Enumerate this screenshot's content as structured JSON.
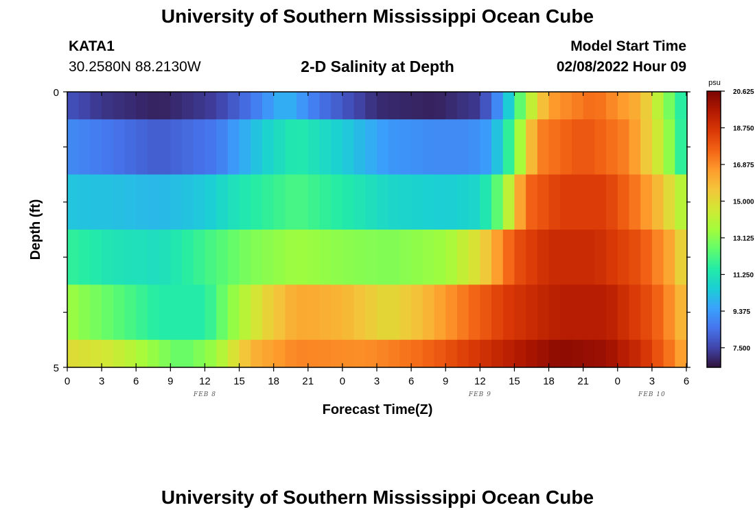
{
  "page": {
    "title_top": "University of Southern Mississippi Ocean Cube",
    "title_bottom": "University of Southern Mississippi Ocean Cube",
    "station_name": "KATA1",
    "station_coords": "30.2580N  88.2130W",
    "model_start_label": "Model Start Time",
    "model_start_value": "02/08/2022 Hour 09"
  },
  "colors": {
    "scale": [
      "#30123b",
      "#4145ab",
      "#4675ed",
      "#39a2fc",
      "#1bcfd4",
      "#24eca6",
      "#61fc6c",
      "#a4fc3b",
      "#d1e834",
      "#f3c63a",
      "#fe9b2d",
      "#f36315",
      "#d93806",
      "#b11901",
      "#7a0403"
    ]
  },
  "chart_data": {
    "type": "heatmap",
    "title": "2-D Salinity at Depth",
    "xlabel": "Forecast Time(Z)",
    "ylabel": "Depth (ft)",
    "x_tick_labels": [
      "0",
      "3",
      "6",
      "9",
      "12",
      "15",
      "18",
      "21",
      "0",
      "3",
      "6",
      "9",
      "12",
      "15",
      "18",
      "21",
      "0",
      "3",
      "6"
    ],
    "x_hours": [
      0,
      3,
      6,
      9,
      12,
      15,
      18,
      21,
      24,
      27,
      30,
      33,
      36,
      39,
      42,
      45,
      48,
      51,
      54
    ],
    "date_labels": [
      {
        "text": "FEB 8",
        "hour": 12
      },
      {
        "text": "FEB 9",
        "hour": 36
      },
      {
        "text": "FEB 10",
        "hour": 51
      }
    ],
    "y_tick_labels": [
      "0",
      "5"
    ],
    "ylim": [
      0,
      5
    ],
    "xlim": [
      0,
      54
    ],
    "colorbar": {
      "unit": "psu",
      "min": 6.5,
      "max": 20.625,
      "tick_labels": [
        "20.625",
        "18.750",
        "16.875",
        "15.000",
        "13.125",
        "11.250",
        "9.375",
        "7.500"
      ],
      "tick_values": [
        20.625,
        18.75,
        16.875,
        15.0,
        13.125,
        11.25,
        9.375,
        7.5
      ]
    },
    "layers": [
      {
        "depth_range": "0-0.5 ft",
        "keyframes": [
          [
            0,
            7.8
          ],
          [
            3,
            7.2
          ],
          [
            8,
            6.8
          ],
          [
            13,
            7.4
          ],
          [
            16,
            8.5
          ],
          [
            19,
            10.0
          ],
          [
            22,
            8.5
          ],
          [
            27,
            7.0
          ],
          [
            32,
            6.8
          ],
          [
            36,
            7.3
          ],
          [
            38,
            9.5
          ],
          [
            40,
            13.5
          ],
          [
            42,
            16.5
          ],
          [
            46,
            17.5
          ],
          [
            50,
            16.0
          ],
          [
            52,
            13.5
          ],
          [
            54,
            11.0
          ]
        ]
      },
      {
        "depth_range": "0.5-1.5 ft",
        "keyframes": [
          [
            0,
            9.0
          ],
          [
            4,
            8.5
          ],
          [
            8,
            8.0
          ],
          [
            13,
            8.6
          ],
          [
            17,
            10.5
          ],
          [
            20,
            11.5
          ],
          [
            24,
            10.5
          ],
          [
            28,
            9.3
          ],
          [
            32,
            9.0
          ],
          [
            35,
            9.0
          ],
          [
            37,
            9.5
          ],
          [
            39,
            12.5
          ],
          [
            41,
            17.0
          ],
          [
            45,
            18.0
          ],
          [
            49,
            17.0
          ],
          [
            52,
            14.0
          ],
          [
            54,
            11.0
          ]
        ]
      },
      {
        "depth_range": "1.5-2.5 ft",
        "keyframes": [
          [
            0,
            10.3
          ],
          [
            4,
            10.2
          ],
          [
            8,
            10.0
          ],
          [
            12,
            10.4
          ],
          [
            16,
            11.5
          ],
          [
            20,
            12.2
          ],
          [
            24,
            11.5
          ],
          [
            28,
            10.8
          ],
          [
            33,
            10.5
          ],
          [
            36,
            10.8
          ],
          [
            38,
            13.0
          ],
          [
            40,
            17.5
          ],
          [
            43,
            18.5
          ],
          [
            47,
            18.5
          ],
          [
            50,
            17.0
          ],
          [
            52,
            15.5
          ],
          [
            54,
            13.5
          ]
        ]
      },
      {
        "depth_range": "2.5-3.5 ft",
        "keyframes": [
          [
            0,
            11.8
          ],
          [
            4,
            11.2
          ],
          [
            8,
            11.0
          ],
          [
            12,
            12.0
          ],
          [
            16,
            13.0
          ],
          [
            20,
            13.5
          ],
          [
            24,
            13.2
          ],
          [
            28,
            13.0
          ],
          [
            33,
            13.5
          ],
          [
            36,
            15.0
          ],
          [
            39,
            18.0
          ],
          [
            42,
            19.0
          ],
          [
            46,
            19.0
          ],
          [
            50,
            18.0
          ],
          [
            53,
            16.0
          ],
          [
            54,
            14.5
          ]
        ]
      },
      {
        "depth_range": "3.5-4.5 ft",
        "keyframes": [
          [
            0,
            13.5
          ],
          [
            4,
            12.5
          ],
          [
            8,
            11.5
          ],
          [
            12,
            11.5
          ],
          [
            14,
            13.0
          ],
          [
            17,
            15.0
          ],
          [
            20,
            16.3
          ],
          [
            24,
            16.0
          ],
          [
            28,
            15.0
          ],
          [
            31,
            15.8
          ],
          [
            34,
            17.0
          ],
          [
            38,
            18.5
          ],
          [
            43,
            19.5
          ],
          [
            47,
            19.5
          ],
          [
            51,
            18.0
          ],
          [
            53,
            16.5
          ],
          [
            54,
            15.5
          ]
        ]
      },
      {
        "depth_range": "4.5-5 ft",
        "keyframes": [
          [
            0,
            15.0
          ],
          [
            4,
            14.5
          ],
          [
            7,
            13.5
          ],
          [
            10,
            12.5
          ],
          [
            13,
            13.5
          ],
          [
            16,
            16.0
          ],
          [
            20,
            17.0
          ],
          [
            26,
            16.8
          ],
          [
            31,
            17.5
          ],
          [
            35,
            18.5
          ],
          [
            39,
            19.5
          ],
          [
            43,
            20.3
          ],
          [
            47,
            20.0
          ],
          [
            50,
            19.0
          ],
          [
            53,
            17.0
          ],
          [
            54,
            16.0
          ]
        ]
      }
    ]
  }
}
